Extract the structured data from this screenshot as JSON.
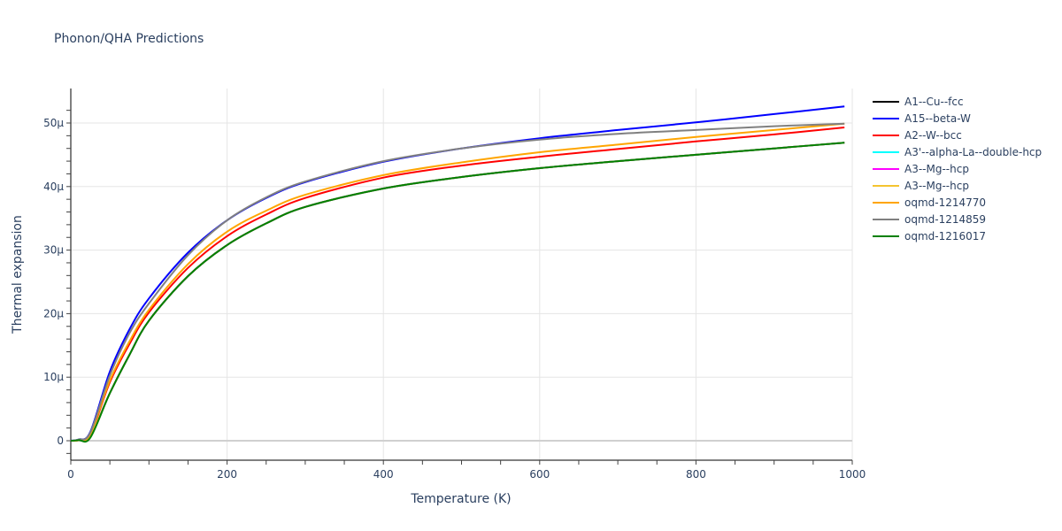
{
  "chart_data": {
    "type": "line",
    "title": "Phonon/QHA Predictions",
    "xlabel": "Temperature (K)",
    "ylabel": "Thermal expansion",
    "xlim": [
      0,
      1000
    ],
    "ylim": [
      -3e-06,
      5.5e-05
    ],
    "x_ticks": [
      0,
      200,
      400,
      600,
      800,
      1000
    ],
    "x_tick_labels": [
      "0",
      "200",
      "400",
      "600",
      "800",
      "1000"
    ],
    "y_ticks": [
      0,
      1e-05,
      2e-05,
      3e-05,
      4e-05,
      5e-05
    ],
    "y_tick_labels": [
      "0",
      "10μ",
      "20μ",
      "30μ",
      "40μ",
      "50μ"
    ],
    "grid": true,
    "legend_position": "right",
    "x": [
      0,
      10,
      25,
      50,
      75,
      100,
      150,
      200,
      250,
      300,
      400,
      500,
      600,
      700,
      800,
      900,
      990
    ],
    "series": [
      {
        "name": "A1--Cu--fcc",
        "color": "#000000",
        "values": [
          0,
          1e-07,
          8e-07,
          7.5e-06,
          1.35e-05,
          1.89e-05,
          2.59e-05,
          3.08e-05,
          3.42e-05,
          3.68e-05,
          3.97e-05,
          4.15e-05,
          4.29e-05,
          4.4e-05,
          4.5e-05,
          4.6e-05,
          4.69e-05
        ]
      },
      {
        "name": "A15--beta-W",
        "color": "#0000ff",
        "values": [
          0,
          2e-07,
          1.4e-06,
          1.09e-05,
          1.75e-05,
          2.24e-05,
          2.96e-05,
          3.47e-05,
          3.82e-05,
          4.07e-05,
          4.39e-05,
          4.6e-05,
          4.76e-05,
          4.89e-05,
          5.01e-05,
          5.14e-05,
          5.26e-05
        ]
      },
      {
        "name": "A2--W--bcc",
        "color": "#ff0000",
        "values": [
          0,
          1e-07,
          1e-06,
          9.2e-06,
          1.52e-05,
          2.02e-05,
          2.72e-05,
          3.22e-05,
          3.56e-05,
          3.82e-05,
          4.14e-05,
          4.33e-05,
          4.47e-05,
          4.59e-05,
          4.71e-05,
          4.82e-05,
          4.93e-05
        ]
      },
      {
        "name": "A3'--alpha-La--double-hcp",
        "color": "#00ffff",
        "values": [
          0,
          1e-07,
          8e-07,
          7.5e-06,
          1.35e-05,
          1.89e-05,
          2.59e-05,
          3.08e-05,
          3.42e-05,
          3.68e-05,
          3.97e-05,
          4.15e-05,
          4.29e-05,
          4.4e-05,
          4.5e-05,
          4.6e-05,
          4.69e-05
        ]
      },
      {
        "name": "A3--Mg--hcp",
        "color": "#ff00ff",
        "values": [
          0,
          1e-07,
          8e-07,
          7.5e-06,
          1.35e-05,
          1.89e-05,
          2.59e-05,
          3.08e-05,
          3.42e-05,
          3.68e-05,
          3.97e-05,
          4.15e-05,
          4.29e-05,
          4.4e-05,
          4.5e-05,
          4.6e-05,
          4.69e-05
        ]
      },
      {
        "name": "A3--Mg--hcp",
        "color": "#f4c430",
        "values": [
          0,
          1e-07,
          8e-07,
          7.5e-06,
          1.35e-05,
          1.89e-05,
          2.59e-05,
          3.08e-05,
          3.42e-05,
          3.68e-05,
          3.97e-05,
          4.15e-05,
          4.29e-05,
          4.4e-05,
          4.5e-05,
          4.6e-05,
          4.69e-05
        ]
      },
      {
        "name": "oqmd-1214770",
        "color": "#ffa500",
        "values": [
          0,
          1e-07,
          1.1e-06,
          9.5e-06,
          1.56e-05,
          2.06e-05,
          2.78e-05,
          3.29e-05,
          3.62e-05,
          3.87e-05,
          4.18e-05,
          4.38e-05,
          4.54e-05,
          4.66e-05,
          4.78e-05,
          4.89e-05,
          4.99e-05
        ]
      },
      {
        "name": "oqmd-1214859",
        "color": "#808080",
        "values": [
          0,
          2e-07,
          1.3e-06,
          1.03e-05,
          1.69e-05,
          2.16e-05,
          2.92e-05,
          3.47e-05,
          3.83e-05,
          4.08e-05,
          4.4e-05,
          4.6e-05,
          4.74e-05,
          4.83e-05,
          4.89e-05,
          4.95e-05,
          4.99e-05
        ]
      },
      {
        "name": "oqmd-1216017",
        "color": "#008000",
        "values": [
          0,
          1e-07,
          5e-07,
          7.5e-06,
          1.35e-05,
          1.89e-05,
          2.59e-05,
          3.08e-05,
          3.42e-05,
          3.68e-05,
          3.97e-05,
          4.15e-05,
          4.29e-05,
          4.4e-05,
          4.5e-05,
          4.6e-05,
          4.69e-05
        ]
      }
    ]
  },
  "draw_order": [
    0,
    1,
    2,
    3,
    4,
    5,
    6,
    7,
    8
  ]
}
